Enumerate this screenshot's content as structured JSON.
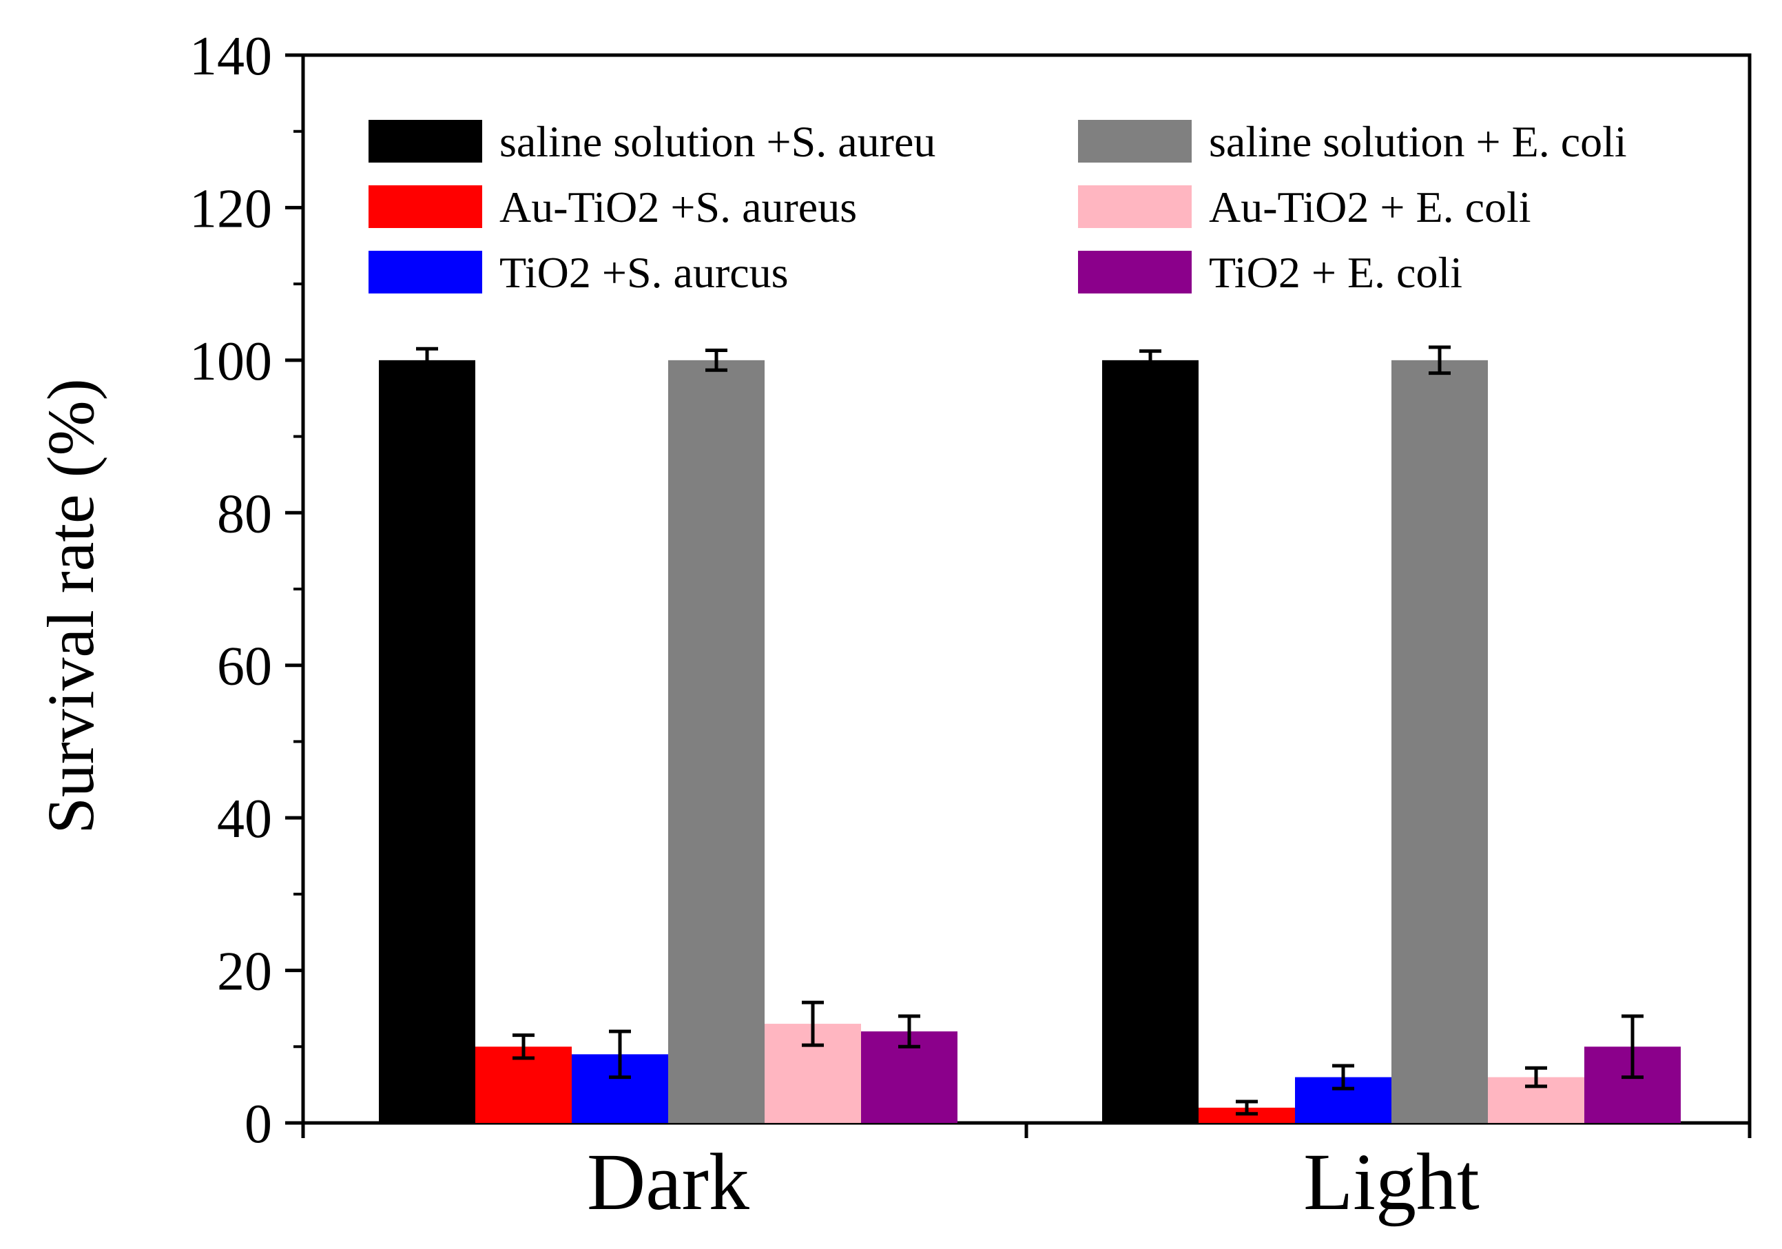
{
  "chart_data": {
    "type": "bar",
    "title": "",
    "xlabel": "",
    "ylabel": "Survival rate (%)",
    "ylim": [
      0,
      140
    ],
    "yticks": [
      0,
      20,
      40,
      60,
      80,
      100,
      120,
      140
    ],
    "grid": false,
    "legend_position": "top, two columns",
    "categories": [
      "Dark",
      "Light"
    ],
    "series": [
      {
        "name": "saline solution +S. aureu",
        "color": "#000000",
        "values": [
          100,
          100
        ],
        "errors": [
          1.5,
          1.2
        ]
      },
      {
        "name": "Au-TiO2 +S. aureus",
        "color": "#ff0000",
        "values": [
          10,
          2
        ],
        "errors": [
          1.5,
          0.8
        ]
      },
      {
        "name": "TiO2 +S. aurcus",
        "color": "#0000ff",
        "values": [
          9,
          6
        ],
        "errors": [
          3,
          1.5
        ]
      },
      {
        "name": "saline solution + E. coli",
        "color": "#808080",
        "values": [
          100,
          100
        ],
        "errors": [
          1.3,
          1.7
        ]
      },
      {
        "name": "Au-TiO2 + E. coli",
        "color": "#ffb6c1",
        "values": [
          13,
          6
        ],
        "errors": [
          2.8,
          1.2
        ]
      },
      {
        "name": "TiO2 + E. coli",
        "color": "#8b008b",
        "values": [
          12,
          10
        ],
        "errors": [
          2,
          4
        ]
      }
    ]
  }
}
